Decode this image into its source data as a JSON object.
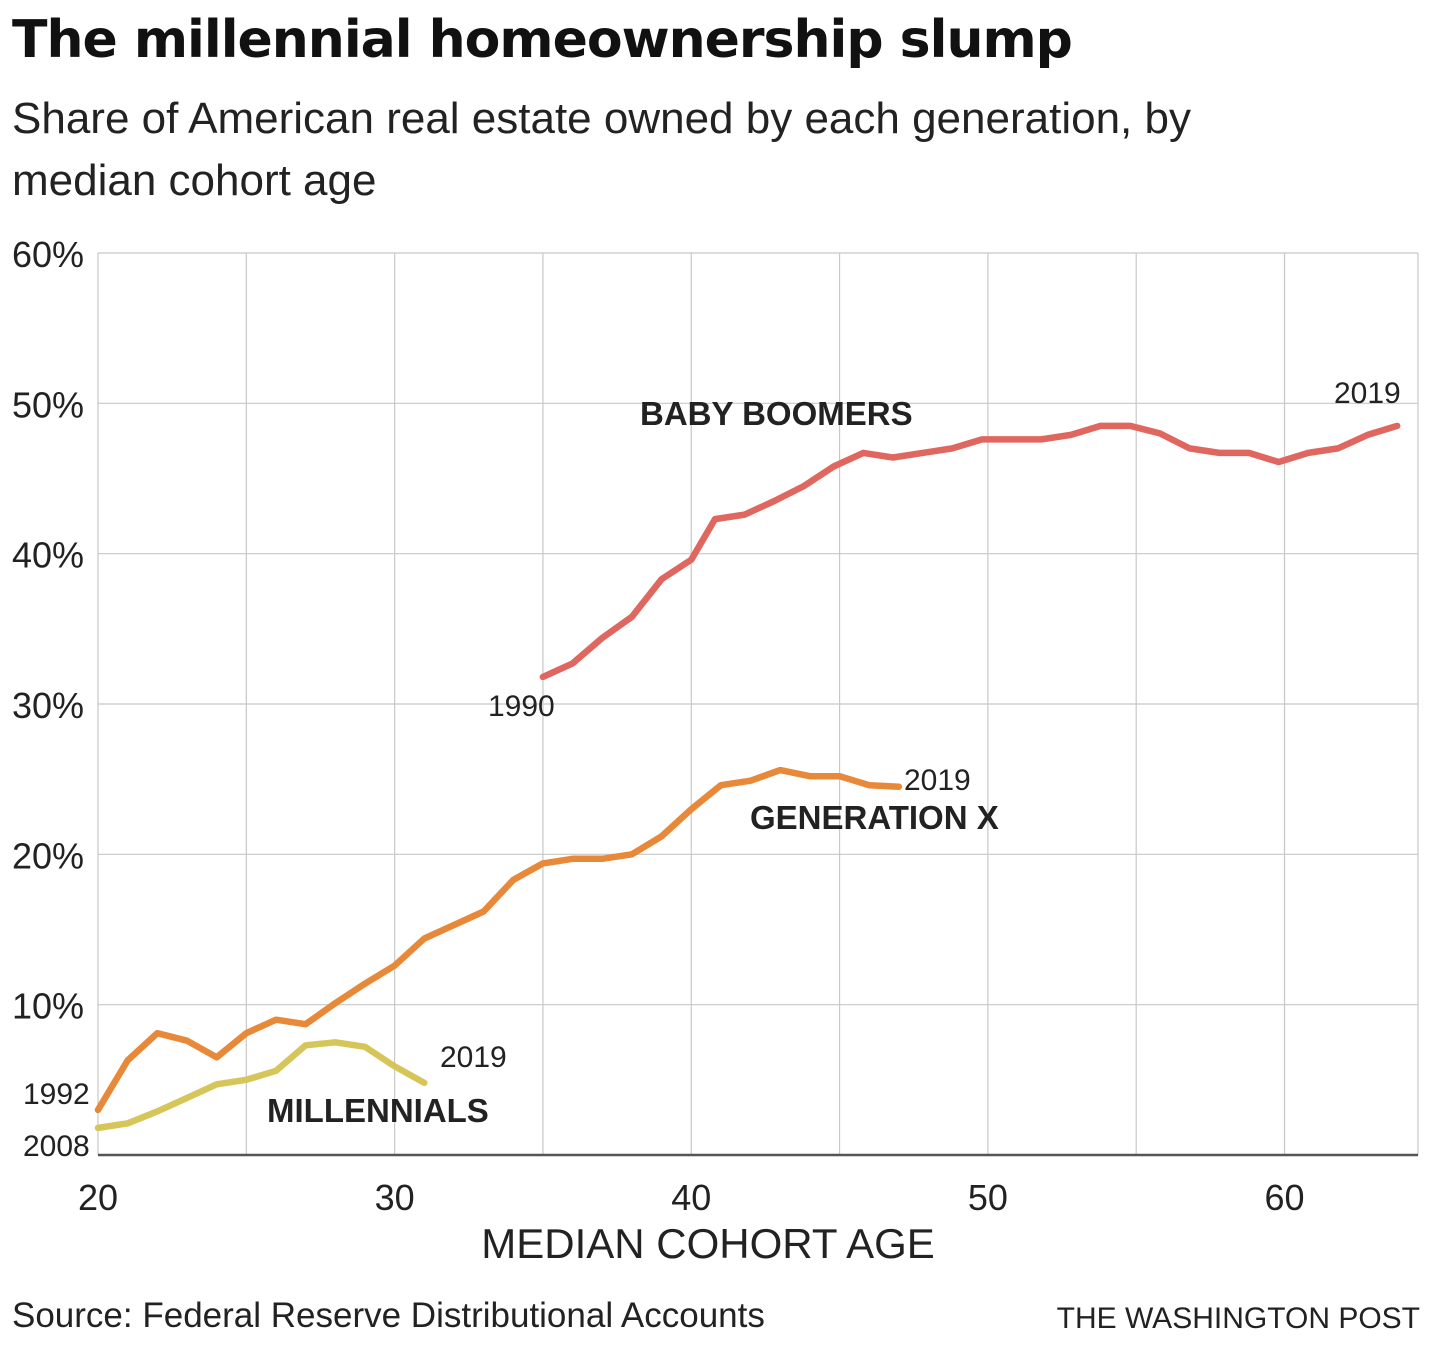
{
  "header": {
    "title": "The millennial homeownership slump",
    "subtitle": "Share of American real estate owned by each generation, by median cohort age"
  },
  "footer": {
    "source": "Source: Federal Reserve Distributional Accounts",
    "credit": "THE WASHINGTON POST"
  },
  "chart_data": {
    "type": "line",
    "title": "The millennial homeownership slump",
    "subtitle": "Share of American real estate owned by each generation, by median cohort age",
    "xlabel": "MEDIAN COHORT AGE",
    "ylabel": "",
    "xlim": [
      20,
      64.5
    ],
    "ylim": [
      0,
      60
    ],
    "x_ticks": [
      20,
      30,
      40,
      50,
      60
    ],
    "y_ticks": [
      10,
      20,
      30,
      40,
      50,
      60
    ],
    "y_tick_labels": [
      "10%",
      "20%",
      "30%",
      "40%",
      "50%",
      "60%"
    ],
    "x_gridlines": [
      20,
      25,
      30,
      35,
      40,
      45,
      50,
      55,
      60,
      65
    ],
    "grid": true,
    "legend": "none (series labeled directly on chart)",
    "series": [
      {
        "name": "BABY BOOMERS",
        "color": "#e0675f",
        "start_label": "1990",
        "end_label": "2019",
        "points": [
          [
            35,
            31.8
          ],
          [
            36,
            32.7
          ],
          [
            37,
            34.4
          ],
          [
            38,
            35.8
          ],
          [
            39,
            38.3
          ],
          [
            40,
            39.6
          ],
          [
            40.8,
            42.3
          ],
          [
            41.8,
            42.6
          ],
          [
            42.8,
            43.5
          ],
          [
            43.8,
            44.5
          ],
          [
            44.8,
            45.8
          ],
          [
            45.8,
            46.7
          ],
          [
            46.8,
            46.4
          ],
          [
            47.8,
            46.7
          ],
          [
            48.8,
            47.0
          ],
          [
            49.8,
            47.6
          ],
          [
            50.8,
            47.6
          ],
          [
            51.8,
            47.6
          ],
          [
            52.8,
            47.9
          ],
          [
            53.8,
            48.5
          ],
          [
            54.8,
            48.5
          ],
          [
            55.8,
            48.0
          ],
          [
            56.8,
            47.0
          ],
          [
            57.8,
            46.7
          ],
          [
            58.8,
            46.7
          ],
          [
            59.8,
            46.1
          ],
          [
            60.8,
            46.7
          ],
          [
            61.8,
            47.0
          ],
          [
            62.8,
            47.9
          ],
          [
            63.8,
            48.5
          ]
        ]
      },
      {
        "name": "GENERATION X",
        "color": "#e8893a",
        "start_label": "1992",
        "end_label": "2019",
        "points": [
          [
            20,
            3.0
          ],
          [
            21,
            6.3
          ],
          [
            22,
            8.1
          ],
          [
            23,
            7.6
          ],
          [
            24,
            6.5
          ],
          [
            25,
            8.1
          ],
          [
            26,
            9.0
          ],
          [
            27,
            8.7
          ],
          [
            28,
            10.1
          ],
          [
            29,
            11.4
          ],
          [
            30,
            12.6
          ],
          [
            31,
            14.4
          ],
          [
            32,
            15.3
          ],
          [
            33,
            16.2
          ],
          [
            34,
            18.3
          ],
          [
            35,
            19.4
          ],
          [
            36,
            19.7
          ],
          [
            37,
            19.7
          ],
          [
            38,
            20.0
          ],
          [
            39,
            21.2
          ],
          [
            40,
            23.0
          ],
          [
            41,
            24.6
          ],
          [
            42,
            24.9
          ],
          [
            43,
            25.6
          ],
          [
            44,
            25.2
          ],
          [
            45,
            25.2
          ],
          [
            46,
            24.6
          ],
          [
            47,
            24.5
          ]
        ]
      },
      {
        "name": "MILLENNIALS",
        "color": "#d6c65a",
        "start_label": "2008",
        "end_label": "2019",
        "points": [
          [
            20,
            1.8
          ],
          [
            21,
            2.1
          ],
          [
            22,
            2.9
          ],
          [
            23,
            3.8
          ],
          [
            24,
            4.7
          ],
          [
            25,
            5.0
          ],
          [
            26,
            5.6
          ],
          [
            27,
            7.3
          ],
          [
            28,
            7.5
          ],
          [
            29,
            7.2
          ],
          [
            30,
            5.9
          ],
          [
            31,
            4.8
          ]
        ]
      }
    ]
  }
}
